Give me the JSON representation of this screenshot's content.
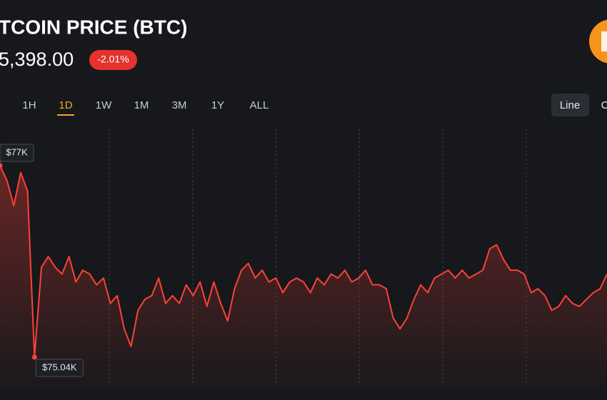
{
  "header": {
    "title": "TCOIN PRICE (BTC)",
    "price": "5,398.00",
    "change": "-2.01%"
  },
  "timeframes": {
    "options": [
      "1H",
      "1D",
      "1W",
      "1M",
      "3M",
      "1Y",
      "ALL"
    ],
    "active": "1D"
  },
  "view_buttons": [
    "Line",
    "C"
  ],
  "chart_data": {
    "type": "line",
    "color": "#ff4136",
    "values": [
      77.0,
      76.85,
      76.59,
      76.93,
      76.74,
      75.04,
      75.96,
      76.07,
      75.96,
      75.89,
      76.07,
      75.81,
      75.93,
      75.89,
      75.78,
      75.85,
      75.59,
      75.67,
      75.33,
      75.15,
      75.52,
      75.63,
      75.67,
      75.85,
      75.59,
      75.67,
      75.59,
      75.78,
      75.67,
      75.81,
      75.56,
      75.81,
      75.59,
      75.41,
      75.74,
      75.93,
      76.0,
      75.85,
      75.93,
      75.81,
      75.85,
      75.7,
      75.81,
      75.85,
      75.81,
      75.7,
      75.85,
      75.78,
      75.89,
      75.85,
      75.93,
      75.81,
      75.85,
      75.93,
      75.78,
      75.78,
      75.74,
      75.44,
      75.33,
      75.44,
      75.63,
      75.78,
      75.7,
      75.85,
      75.89,
      75.93,
      75.85,
      75.93,
      75.85,
      75.89,
      75.93,
      76.15,
      76.19,
      76.04,
      75.93,
      75.93,
      75.89,
      75.7,
      75.74,
      75.67,
      75.52,
      75.56,
      75.67,
      75.59,
      75.56,
      75.63,
      75.7,
      75.74,
      75.89
    ],
    "annotations": [
      {
        "text": "$77K",
        "value": 77
      },
      {
        "text": "$75.04K",
        "value": 75.04
      }
    ]
  }
}
